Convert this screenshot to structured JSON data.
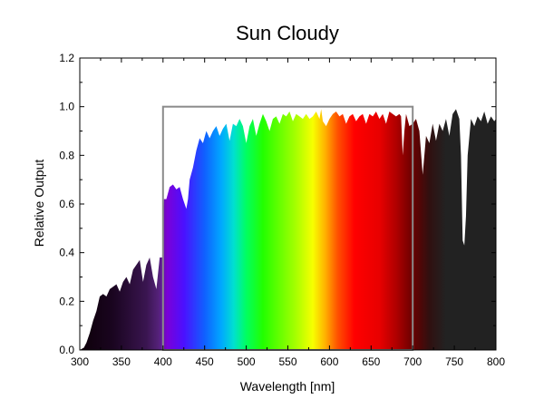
{
  "chart_data": {
    "type": "area",
    "title": "Sun Cloudy",
    "xlabel": "Wavelength [nm]",
    "ylabel": "Relative Output",
    "xlim": [
      300,
      800
    ],
    "ylim": [
      0,
      1.2
    ],
    "xticks": [
      300,
      350,
      400,
      450,
      500,
      550,
      600,
      650,
      700,
      750,
      800
    ],
    "yticks": [
      0.0,
      0.2,
      0.4,
      0.6,
      0.8,
      1.0,
      1.2
    ],
    "ytick_labels": [
      "0.0",
      "0.2",
      "0.4",
      "0.6",
      "0.8",
      "1.0",
      "1.2"
    ],
    "grid": false,
    "visible_band_box": {
      "x_range": [
        400,
        700
      ],
      "y_top": 1.0,
      "color": "#8a8a8a"
    },
    "series": [
      {
        "x": [
          300,
          305,
          308,
          312,
          316,
          320,
          324,
          328,
          332,
          336,
          340,
          344,
          348,
          352,
          356,
          360,
          364,
          368,
          372,
          376,
          380,
          384,
          388,
          392,
          396,
          399,
          401,
          404,
          408,
          412,
          416,
          420,
          424,
          428,
          430,
          432,
          436,
          440,
          444,
          448,
          452,
          456,
          460,
          464,
          468,
          472,
          476,
          480,
          484,
          488,
          492,
          496,
          500,
          504,
          508,
          512,
          516,
          520,
          524,
          528,
          532,
          536,
          540,
          544,
          548,
          552,
          556,
          560,
          564,
          568,
          572,
          576,
          580,
          584,
          588,
          590,
          592,
          596,
          600,
          604,
          608,
          612,
          616,
          620,
          624,
          628,
          632,
          636,
          640,
          644,
          648,
          652,
          656,
          660,
          664,
          668,
          672,
          676,
          680,
          684,
          686,
          688,
          690,
          692,
          696,
          700,
          704,
          708,
          712,
          716,
          720,
          724,
          728,
          732,
          736,
          740,
          744,
          748,
          752,
          756,
          758,
          760,
          762,
          764,
          766,
          770,
          774,
          778,
          782,
          786,
          790,
          794,
          798,
          800
        ],
        "y": [
          0.0,
          0.01,
          0.03,
          0.07,
          0.12,
          0.16,
          0.22,
          0.23,
          0.22,
          0.25,
          0.26,
          0.27,
          0.24,
          0.28,
          0.3,
          0.27,
          0.33,
          0.35,
          0.37,
          0.28,
          0.35,
          0.38,
          0.3,
          0.25,
          0.38,
          0.38,
          0.62,
          0.62,
          0.67,
          0.68,
          0.66,
          0.67,
          0.62,
          0.58,
          0.62,
          0.7,
          0.75,
          0.82,
          0.87,
          0.85,
          0.9,
          0.87,
          0.9,
          0.92,
          0.88,
          0.91,
          0.93,
          0.86,
          0.93,
          0.92,
          0.95,
          0.92,
          0.85,
          0.92,
          0.95,
          0.88,
          0.93,
          0.97,
          0.94,
          0.9,
          0.95,
          0.96,
          0.93,
          0.97,
          0.96,
          0.98,
          0.94,
          0.97,
          0.96,
          0.95,
          0.97,
          0.95,
          0.96,
          0.98,
          0.95,
          0.99,
          0.94,
          0.92,
          0.95,
          0.97,
          0.98,
          0.96,
          0.97,
          0.93,
          0.96,
          0.97,
          0.94,
          0.96,
          0.97,
          0.93,
          0.97,
          0.96,
          0.98,
          0.95,
          0.97,
          0.93,
          0.98,
          0.97,
          0.96,
          0.97,
          0.96,
          0.8,
          0.9,
          0.97,
          0.92,
          0.93,
          0.95,
          0.9,
          0.72,
          0.88,
          0.85,
          0.93,
          0.86,
          0.93,
          0.9,
          0.95,
          0.88,
          0.97,
          0.99,
          0.95,
          0.8,
          0.45,
          0.43,
          0.55,
          0.8,
          0.95,
          0.92,
          0.96,
          0.94,
          0.98,
          0.93,
          0.96,
          0.94,
          0.95
        ]
      }
    ]
  }
}
